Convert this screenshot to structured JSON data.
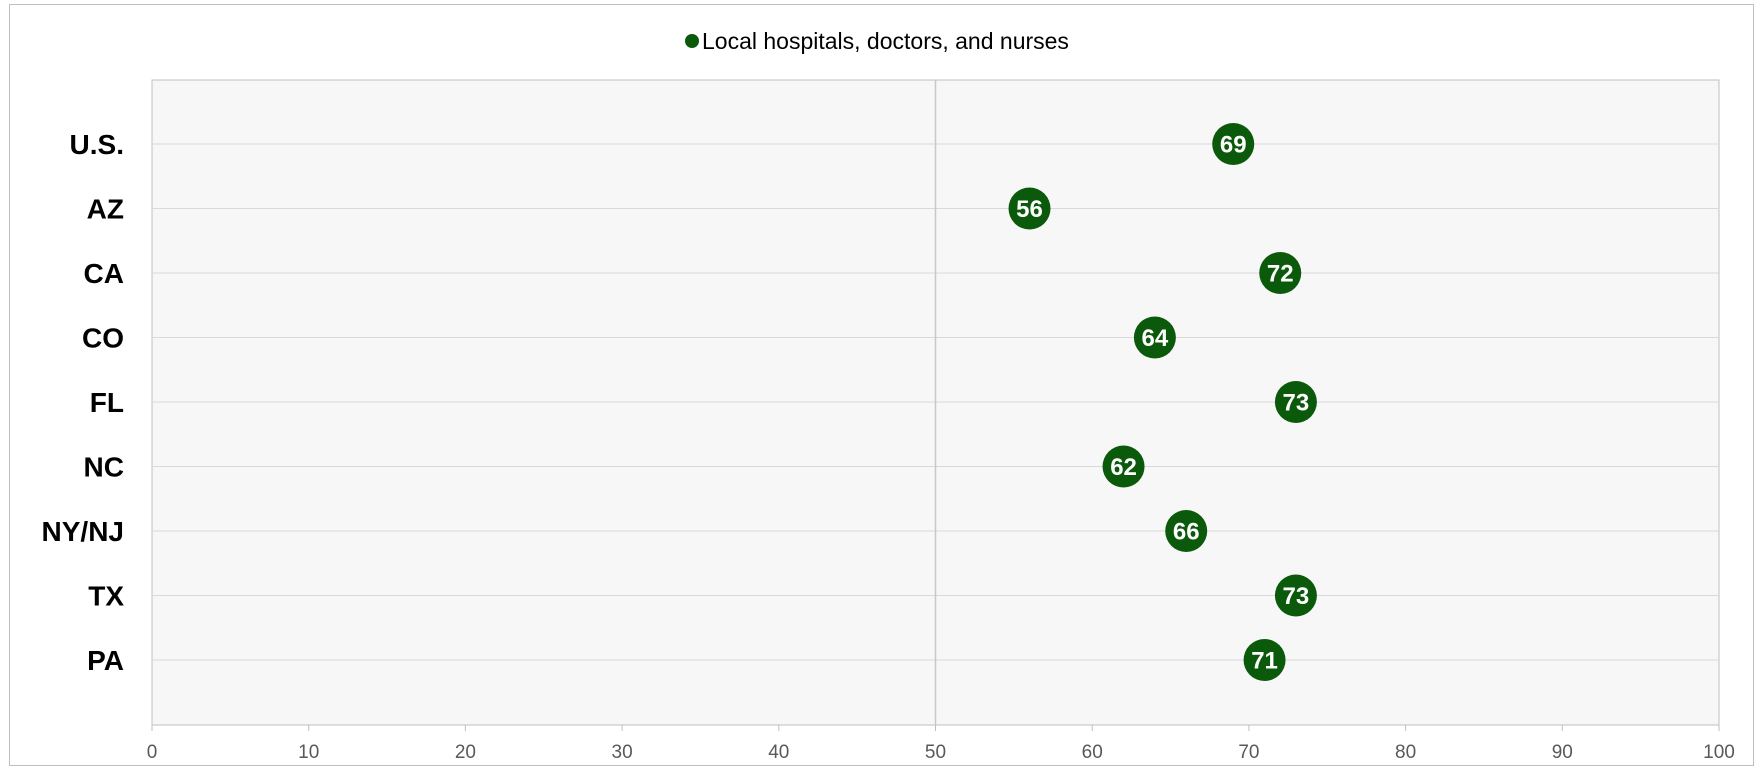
{
  "chart_data": {
    "type": "scatter",
    "categories": [
      "U.S.",
      "AZ",
      "CA",
      "CO",
      "FL",
      "NC",
      "NY/NJ",
      "TX",
      "PA"
    ],
    "series": [
      {
        "name": "Local hospitals, doctors, and nurses",
        "values": [
          69,
          56,
          72,
          64,
          73,
          62,
          66,
          73,
          71
        ]
      }
    ],
    "x_ticks": [
      "0",
      "10",
      "20",
      "30",
      "40",
      "50",
      "60",
      "70",
      "80",
      "90",
      "100"
    ],
    "xlim": [
      0,
      100
    ],
    "reference_line_x": 50,
    "grid": "horizontal",
    "legend_position": "top-center",
    "title": "",
    "xlabel": "",
    "ylabel": "",
    "colors": {
      "marker": "#0b5a0b",
      "plot_background": "#f7f7f7",
      "gridline": "#d9d9d9",
      "axis": "#bfbfbf"
    }
  }
}
